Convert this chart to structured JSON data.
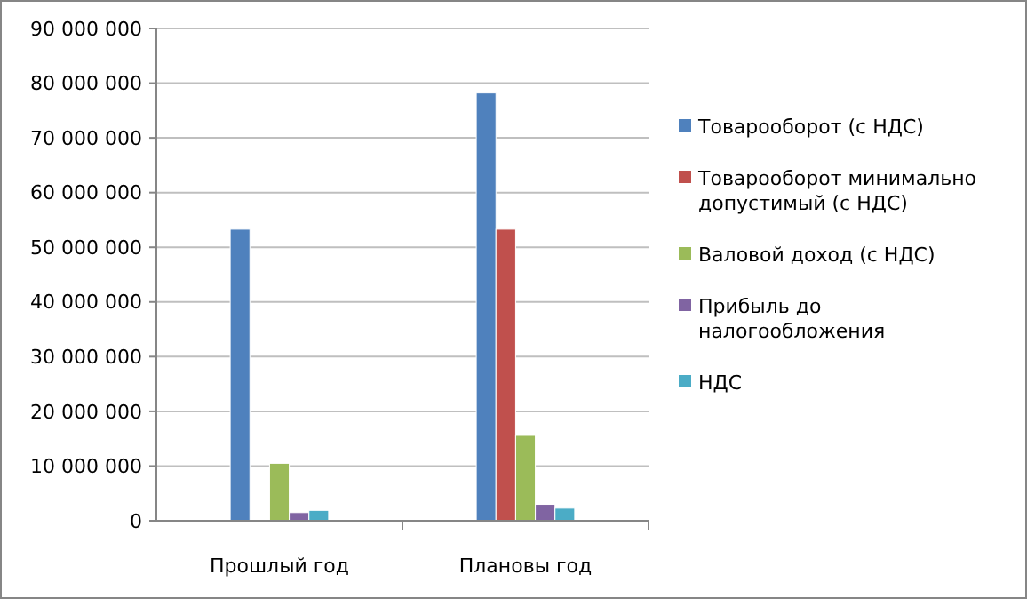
{
  "chart_data": {
    "type": "bar",
    "categories": [
      "Прошлый год",
      "Плановы год"
    ],
    "series": [
      {
        "name": "Товарооборот (с НДС)",
        "color": "#4f81bd",
        "values": [
          53300000,
          78200000
        ]
      },
      {
        "name": "Товарооборот минимально допустимый (с НДС)",
        "color": "#c0504d",
        "values": [
          null,
          53300000
        ]
      },
      {
        "name": "Валовой доход (с НДС)",
        "color": "#9bbb59",
        "values": [
          10500000,
          15600000
        ]
      },
      {
        "name": "Прибыль до налогообложения",
        "color": "#8064a2",
        "values": [
          1500000,
          3000000
        ]
      },
      {
        "name": "НДС",
        "color": "#4bacc6",
        "values": [
          1900000,
          2300000
        ]
      }
    ],
    "ylim": [
      0,
      90000000
    ],
    "yticks": [
      {
        "value": 0,
        "label": "0"
      },
      {
        "value": 10000000,
        "label": "10 000 000"
      },
      {
        "value": 20000000,
        "label": "20 000 000"
      },
      {
        "value": 30000000,
        "label": "30 000 000"
      },
      {
        "value": 40000000,
        "label": "40 000 000"
      },
      {
        "value": 50000000,
        "label": "50 000 000"
      },
      {
        "value": 60000000,
        "label": "60 000 000"
      },
      {
        "value": 70000000,
        "label": "70 000 000"
      },
      {
        "value": 80000000,
        "label": "80 000 000"
      },
      {
        "value": 90000000,
        "label": "90 000 000"
      }
    ],
    "grid": "y",
    "legend": "right"
  }
}
